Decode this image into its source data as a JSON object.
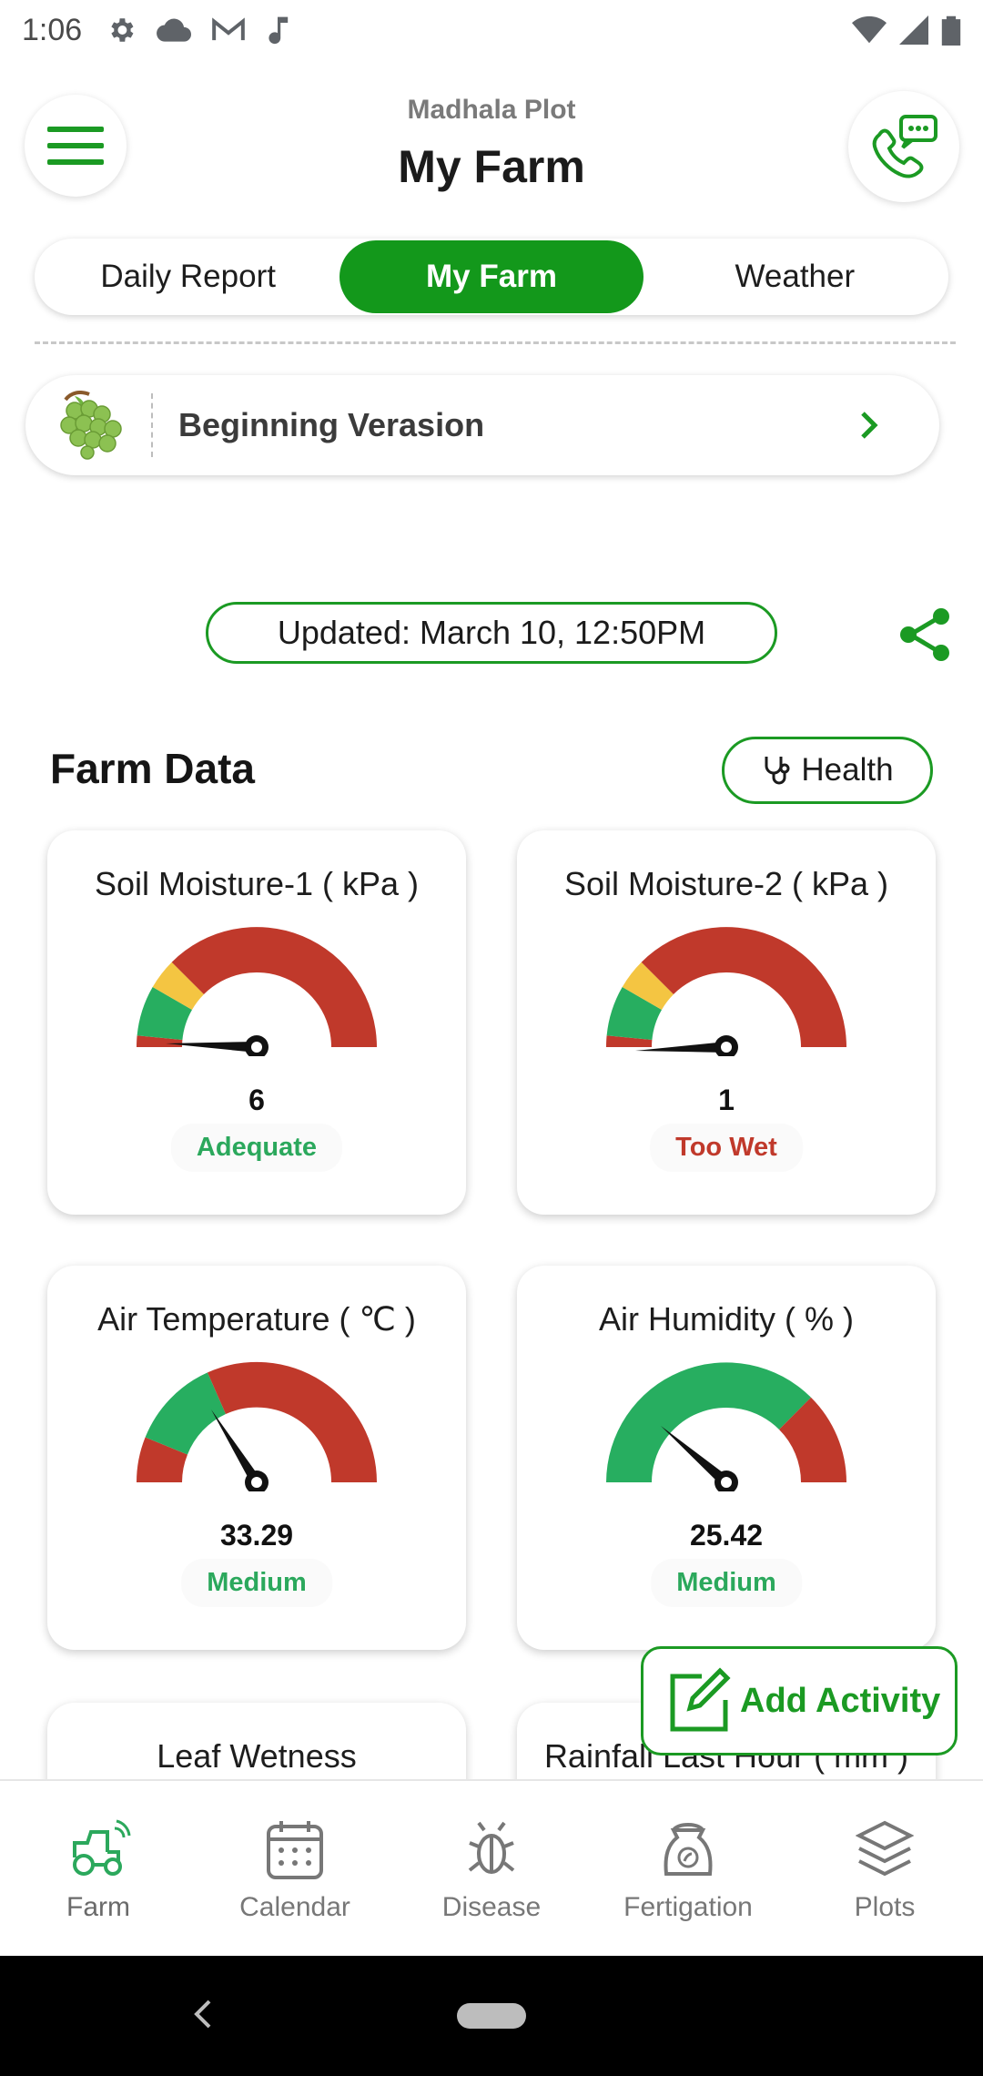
{
  "status_bar": {
    "time": "1:06"
  },
  "header": {
    "subtitle": "Madhala Plot",
    "title": "My Farm"
  },
  "tabs": [
    {
      "label": "Daily Report",
      "active": false
    },
    {
      "label": "My Farm",
      "active": true
    },
    {
      "label": "Weather",
      "active": false
    }
  ],
  "stage": {
    "label": "Beginning Verasion"
  },
  "updated": {
    "text": "Updated: March 10, 12:50PM"
  },
  "farm_data": {
    "title": "Farm Data",
    "health_label": "Health",
    "cards": [
      {
        "title": "Soil Moisture-1 ( kPa )",
        "value": "6",
        "status": "Adequate",
        "status_color": "#2ba85c"
      },
      {
        "title": "Soil Moisture-2 ( kPa )",
        "value": "1",
        "status": "Too Wet",
        "status_color": "#c0392b"
      },
      {
        "title": "Air Temperature ( ℃ )",
        "value": "33.29",
        "status": "Medium",
        "status_color": "#2ba85c"
      },
      {
        "title": "Air Humidity ( % )",
        "value": "25.42",
        "status": "Medium",
        "status_color": "#2ba85c"
      },
      {
        "title": "Leaf Wetness"
      },
      {
        "title": "Rainfall Last Hour ( mm )"
      }
    ]
  },
  "add_activity": {
    "label": "Add Activity"
  },
  "bottom_nav": [
    {
      "label": "Farm",
      "icon": "tractor-icon",
      "active": true
    },
    {
      "label": "Calendar",
      "icon": "calendar-icon",
      "active": false
    },
    {
      "label": "Disease",
      "icon": "bug-icon",
      "active": false
    },
    {
      "label": "Fertigation",
      "icon": "fertilizer-bag-icon",
      "active": false
    },
    {
      "label": "Plots",
      "icon": "layers-icon",
      "active": false
    }
  ],
  "colors": {
    "accent": "#13981b",
    "gauge_red": "#c0392b",
    "gauge_green": "#27ae60",
    "gauge_yellow": "#f4c542"
  }
}
